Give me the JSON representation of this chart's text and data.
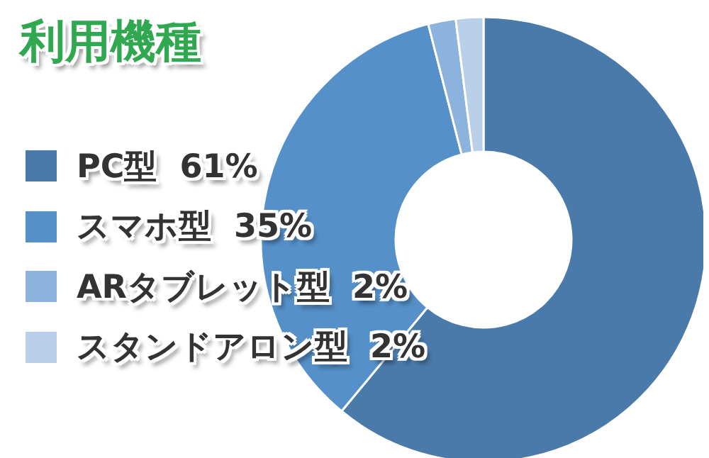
{
  "chart_data": {
    "type": "donut",
    "title": "利用機種",
    "categories": [
      "PC型",
      "スマホ型",
      "ARタブレット型",
      "スタンドアロン型"
    ],
    "values": [
      61,
      35,
      2,
      2
    ],
    "value_labels": [
      "61%",
      "35%",
      "2%",
      "2%"
    ],
    "colors": [
      "#4a7aaa",
      "#5690c8",
      "#8cb2de",
      "#b9cfea"
    ],
    "legend": "left"
  }
}
